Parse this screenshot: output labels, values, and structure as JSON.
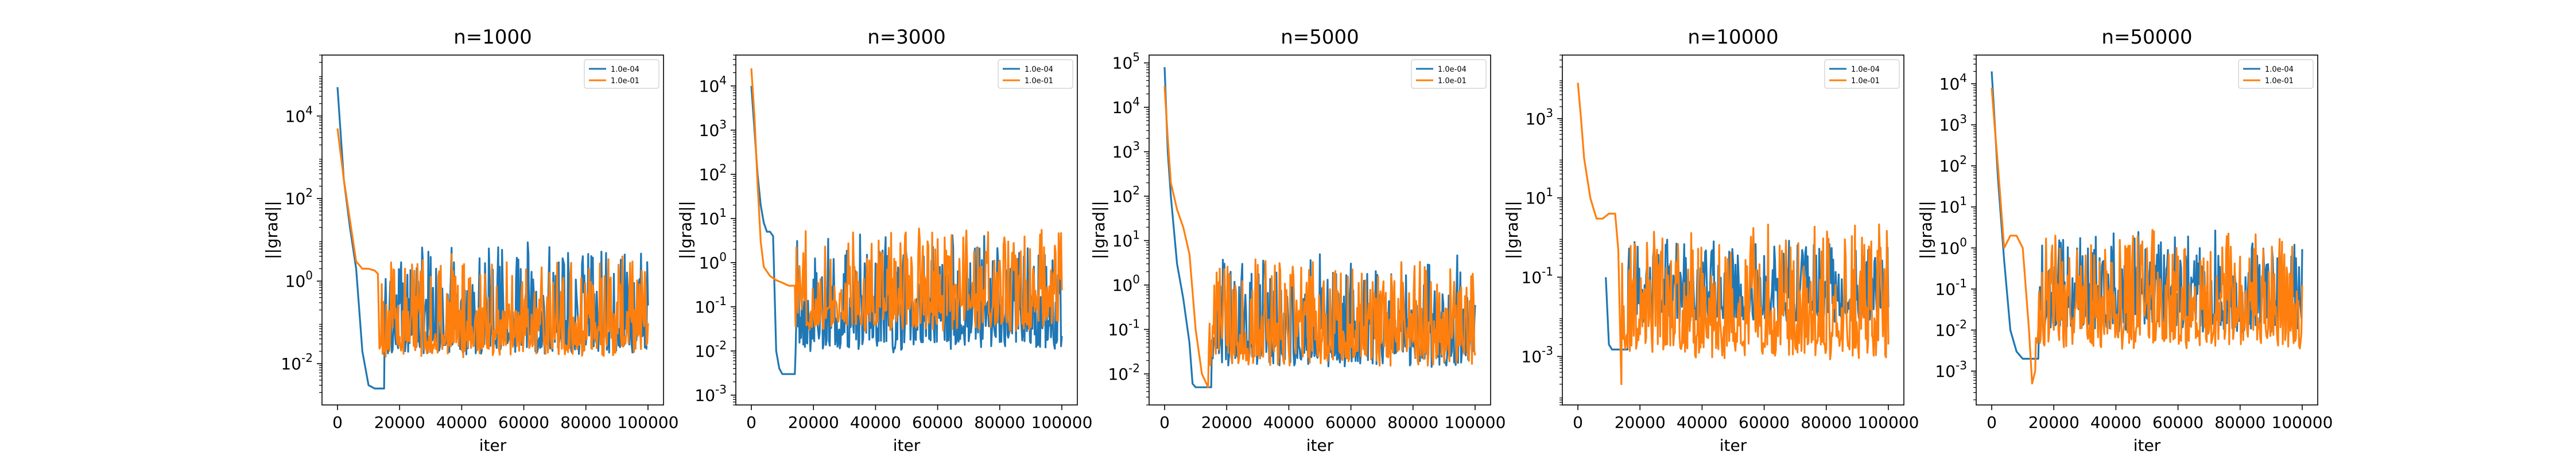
{
  "chart_data": [
    {
      "type": "line",
      "title": "n=1000",
      "xlabel": "iter",
      "ylabel": "||grad||",
      "yscale": "log",
      "xlim": [
        -5000,
        105000
      ],
      "ylim": [
        0.001,
        300000
      ],
      "x_ticks": [
        0,
        20000,
        40000,
        60000,
        80000,
        100000
      ],
      "x_tick_labels": [
        "0",
        "20000",
        "40000",
        "60000",
        "80000",
        "100000"
      ],
      "y_ticks": [
        0.01,
        1,
        100,
        10000
      ],
      "y_tick_labels": [
        "10",
        "10",
        "10",
        "10"
      ],
      "y_tick_exponents": [
        "-2",
        "0",
        "2",
        "4"
      ],
      "legend": "top-right",
      "grid": false,
      "series": [
        {
          "name": "1.0e-04",
          "color": "#1f77b4",
          "start": 50000,
          "plateau": 0.0025,
          "plateau_until": 15000,
          "noise_low": 0.005,
          "noise_high": 10,
          "noise_start": 15000,
          "x": [
            0,
            2000,
            4000,
            6000,
            8000,
            10000,
            12000,
            15000
          ],
          "y": [
            50000,
            300,
            20,
            2,
            0.02,
            0.003,
            0.0025,
            0.0025
          ]
        },
        {
          "name": "1.0e-01",
          "color": "#ff7f0e",
          "start": 5000,
          "plateau": 2,
          "plateau_until": 13000,
          "noise_low": 0.005,
          "noise_high": 5,
          "noise_start": 13000,
          "x": [
            0,
            2000,
            4000,
            6000,
            8000,
            10000,
            12000,
            13000
          ],
          "y": [
            5000,
            300,
            30,
            3,
            2,
            2,
            1.8,
            1.5
          ]
        }
      ]
    },
    {
      "type": "line",
      "title": "n=3000",
      "xlabel": "iter",
      "ylabel": "||grad||",
      "yscale": "log",
      "xlim": [
        -5000,
        105000
      ],
      "ylim": [
        0.0006,
        50000
      ],
      "x_ticks": [
        0,
        20000,
        40000,
        60000,
        80000,
        100000
      ],
      "x_tick_labels": [
        "0",
        "20000",
        "40000",
        "60000",
        "80000",
        "100000"
      ],
      "y_ticks": [
        0.001,
        0.01,
        0.1,
        1,
        10,
        100,
        1000,
        10000
      ],
      "y_tick_labels": [
        "10",
        "10",
        "10",
        "10",
        "10",
        "10",
        "10",
        "10"
      ],
      "y_tick_exponents": [
        "-3",
        "-2",
        "-1",
        "0",
        "1",
        "2",
        "3",
        "4"
      ],
      "legend": "top-right",
      "grid": false,
      "series": [
        {
          "name": "1.0e-04",
          "color": "#1f77b4",
          "start": 10000,
          "plateau": 0.003,
          "plateau_until": 14000,
          "noise_low": 0.003,
          "noise_high": 5,
          "noise_start": 14000,
          "x": [
            0,
            1000,
            2000,
            3000,
            4000,
            5000,
            6000,
            7000,
            8000,
            9000,
            10000,
            12000,
            14000
          ],
          "y": [
            10000,
            1000,
            100,
            20,
            8,
            5,
            5,
            4,
            0.01,
            0.004,
            0.003,
            0.003,
            0.003
          ]
        },
        {
          "name": "1.0e-01",
          "color": "#ff7f0e",
          "start": 25000,
          "plateau": 0.3,
          "plateau_until": 14000,
          "noise_low": 0.01,
          "noise_high": 8,
          "noise_start": 14000,
          "x": [
            0,
            1000,
            2000,
            3000,
            4000,
            6000,
            8000,
            10000,
            12000,
            14000
          ],
          "y": [
            25000,
            2000,
            60,
            3,
            0.8,
            0.5,
            0.4,
            0.35,
            0.3,
            0.3
          ]
        }
      ]
    },
    {
      "type": "line",
      "title": "n=5000",
      "xlabel": "iter",
      "ylabel": "||grad||",
      "yscale": "log",
      "xlim": [
        -5000,
        105000
      ],
      "ylim": [
        0.002,
        150000
      ],
      "x_ticks": [
        0,
        20000,
        40000,
        60000,
        80000,
        100000
      ],
      "x_tick_labels": [
        "0",
        "20000",
        "40000",
        "60000",
        "80000",
        "100000"
      ],
      "y_ticks": [
        0.01,
        0.1,
        1,
        10,
        100,
        1000,
        10000,
        100000
      ],
      "y_tick_labels": [
        "10",
        "10",
        "10",
        "10",
        "10",
        "10",
        "10",
        "10"
      ],
      "y_tick_exponents": [
        "-2",
        "-1",
        "0",
        "1",
        "2",
        "3",
        "4",
        "5"
      ],
      "legend": "top-right",
      "grid": false,
      "series": [
        {
          "name": "1.0e-04",
          "color": "#1f77b4",
          "start": 80000,
          "plateau": 0.005,
          "plateau_until": 15000,
          "noise_low": 0.005,
          "noise_high": 5,
          "noise_start": 15000,
          "x": [
            0,
            1000,
            2000,
            4000,
            6000,
            8000,
            9000,
            10000,
            12000,
            15000
          ],
          "y": [
            80000,
            1000,
            100,
            3,
            0.5,
            0.05,
            0.006,
            0.005,
            0.005,
            0.005
          ]
        },
        {
          "name": "1.0e-01",
          "color": "#ff7f0e",
          "start": 30000,
          "plateau": 0.005,
          "plateau_until": 14000,
          "noise_low": 0.005,
          "noise_high": 5,
          "noise_start": 14000,
          "x": [
            0,
            1000,
            2000,
            4000,
            6000,
            8000,
            10000,
            12000,
            14000
          ],
          "y": [
            30000,
            2000,
            200,
            50,
            20,
            5,
            0.1,
            0.01,
            0.005
          ]
        }
      ]
    },
    {
      "type": "line",
      "title": "n=10000",
      "xlabel": "iter",
      "ylabel": "||grad||",
      "yscale": "log",
      "xlim": [
        -5000,
        105000
      ],
      "ylim": [
        6e-05,
        40000
      ],
      "x_ticks": [
        0,
        20000,
        40000,
        60000,
        80000,
        100000
      ],
      "x_tick_labels": [
        "0",
        "20000",
        "40000",
        "60000",
        "80000",
        "100000"
      ],
      "y_ticks": [
        0.001,
        0.1,
        10,
        1000
      ],
      "y_tick_labels": [
        "10",
        "10",
        "10",
        "10"
      ],
      "y_tick_exponents": [
        "-3",
        "-1",
        "1",
        "3"
      ],
      "legend": "top-right",
      "grid": false,
      "series": [
        {
          "name": "1.0e-04",
          "color": "#1f77b4",
          "start": 0.1,
          "plateau": 0.0015,
          "plateau_until": 16000,
          "noise_low": 0.003,
          "noise_high": 1,
          "noise_start": 16000,
          "x": [
            9000,
            10000,
            11000,
            12000,
            14000,
            16000
          ],
          "y": [
            0.1,
            0.002,
            0.0015,
            0.0015,
            0.0015,
            0.0015
          ]
        },
        {
          "name": "1.0e-01",
          "color": "#ff7f0e",
          "start": 8000,
          "plateau": 3,
          "plateau_until": 14000,
          "noise_low": 0.0002,
          "noise_high": 3,
          "noise_start": 14000,
          "x": [
            0,
            1000,
            2000,
            4000,
            6000,
            8000,
            10000,
            12000,
            13000,
            14000
          ],
          "y": [
            8000,
            1000,
            100,
            10,
            3,
            3,
            4,
            4,
            0.5,
            0.0002
          ]
        }
      ]
    },
    {
      "type": "line",
      "title": "n=50000",
      "xlabel": "iter",
      "ylabel": "||grad||",
      "yscale": "log",
      "xlim": [
        -5000,
        105000
      ],
      "ylim": [
        0.00015,
        50000
      ],
      "x_ticks": [
        0,
        20000,
        40000,
        60000,
        80000,
        100000
      ],
      "x_tick_labels": [
        "0",
        "20000",
        "40000",
        "60000",
        "80000",
        "100000"
      ],
      "y_ticks": [
        0.001,
        0.01,
        0.1,
        1,
        10,
        100,
        1000,
        10000
      ],
      "y_tick_labels": [
        "10",
        "10",
        "10",
        "10",
        "10",
        "10",
        "10",
        "10"
      ],
      "y_tick_exponents": [
        "-3",
        "-2",
        "-1",
        "0",
        "1",
        "2",
        "3",
        "4"
      ],
      "legend": "top-right",
      "grid": false,
      "series": [
        {
          "name": "1.0e-04",
          "color": "#1f77b4",
          "start": 20000,
          "plateau": 0.002,
          "plateau_until": 15000,
          "noise_low": 0.003,
          "noise_high": 3,
          "noise_start": 15000,
          "x": [
            0,
            1000,
            2000,
            4000,
            6000,
            8000,
            10000,
            12000,
            15000
          ],
          "y": [
            20000,
            1000,
            50,
            0.5,
            0.01,
            0.003,
            0.002,
            0.002,
            0.002
          ]
        },
        {
          "name": "1.0e-01",
          "color": "#ff7f0e",
          "start": 8000,
          "plateau": 2,
          "plateau_until": 14000,
          "noise_low": 0.001,
          "noise_high": 3,
          "noise_start": 14000,
          "x": [
            0,
            1000,
            2000,
            3000,
            4000,
            6000,
            8000,
            10000,
            12000,
            13000,
            14000
          ],
          "y": [
            8000,
            800,
            100,
            10,
            1,
            2,
            2,
            1,
            0.01,
            0.0005,
            0.001
          ]
        }
      ]
    }
  ]
}
